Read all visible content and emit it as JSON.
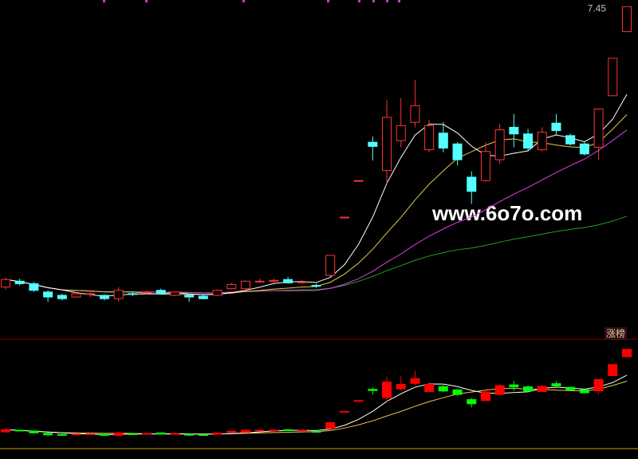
{
  "chart_data": {
    "type": "candlestick",
    "price_label": "7.45",
    "watermark": "www.6o7o.com",
    "panel_label": "涨榜",
    "open": [
      4.08,
      4.15,
      4.12,
      4.02,
      3.98,
      3.96,
      3.99,
      3.98,
      3.94,
      4.0,
      4.01,
      4.04,
      3.98,
      3.98,
      3.97,
      3.98,
      4.06,
      4.06,
      4.15,
      4.15,
      4.17,
      4.13,
      4.1,
      4.22,
      4.92,
      5.36,
      5.82,
      5.48,
      5.84,
      6.06,
      5.73,
      5.93,
      5.8,
      5.4,
      5.36,
      5.61,
      6.0,
      5.92,
      5.73,
      6.05,
      5.9,
      5.8,
      5.76,
      6.38,
      7.15
    ],
    "high": [
      4.19,
      4.18,
      4.14,
      4.04,
      4.0,
      4.02,
      4.03,
      3.99,
      4.08,
      4.02,
      4.04,
      4.06,
      4.03,
      3.99,
      3.99,
      4.05,
      4.13,
      4.16,
      4.18,
      4.18,
      4.2,
      4.16,
      4.12,
      4.46,
      4.92,
      5.36,
      5.89,
      6.33,
      6.35,
      6.57,
      6.09,
      6.06,
      5.82,
      5.47,
      5.82,
      6.04,
      6.16,
      5.98,
      6.0,
      6.16,
      5.92,
      5.82,
      6.22,
      6.83,
      7.45
    ],
    "low": [
      4.05,
      4.1,
      4.02,
      3.9,
      3.92,
      3.95,
      3.96,
      3.92,
      3.9,
      3.97,
      3.99,
      3.99,
      3.97,
      3.9,
      3.93,
      3.97,
      4.05,
      4.05,
      4.13,
      4.13,
      4.12,
      4.12,
      4.07,
      4.2,
      4.92,
      5.36,
      5.6,
      5.32,
      5.76,
      6.0,
      5.7,
      5.7,
      5.54,
      5.08,
      5.34,
      5.56,
      5.76,
      5.71,
      5.71,
      5.9,
      5.78,
      5.66,
      5.61,
      6.38,
      7.15
    ],
    "close": [
      4.17,
      4.12,
      4.04,
      3.96,
      3.94,
      4.0,
      4.0,
      3.94,
      4.04,
      3.99,
      4.02,
      4.0,
      4.02,
      3.96,
      3.94,
      4.04,
      4.11,
      4.15,
      4.15,
      4.16,
      4.13,
      4.14,
      4.09,
      4.46,
      4.92,
      5.36,
      5.77,
      6.12,
      6.02,
      6.26,
      6.02,
      5.75,
      5.61,
      5.23,
      5.71,
      5.97,
      5.92,
      5.75,
      5.94,
      5.96,
      5.8,
      5.68,
      6.22,
      6.83,
      7.45
    ],
    "ylim": [
      3.5,
      7.53
    ],
    "y2lim": [
      3.3,
      7.7
    ],
    "up_color": "#ff3232",
    "down_color": "#54ffff",
    "lower_up_color": "#ff0000",
    "lower_down_color": "#00ff00",
    "ma_colors": [
      "#ffffff",
      "#e6c84a",
      "#e040e0",
      "#20a020"
    ]
  }
}
